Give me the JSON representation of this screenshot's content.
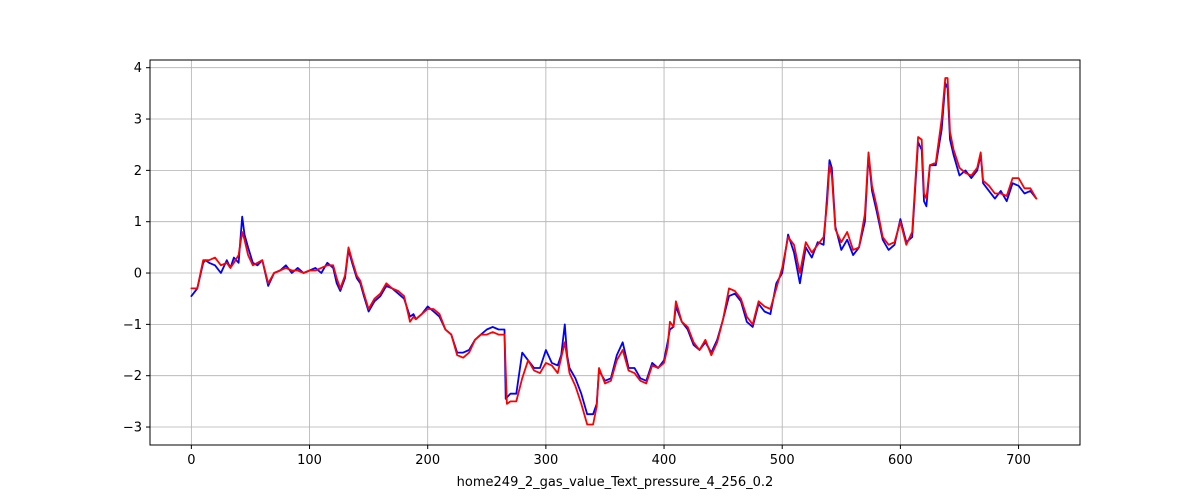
{
  "chart_data": {
    "type": "line",
    "title": "",
    "xlabel": "home249_2_gas_value_Text_pressure_4_256_0.2",
    "ylabel": "",
    "xlim": [
      -35,
      752
    ],
    "ylim": [
      -3.35,
      4.15
    ],
    "xticks": [
      0,
      100,
      200,
      300,
      400,
      500,
      600,
      700
    ],
    "yticks": [
      -3,
      -2,
      -1,
      0,
      1,
      2,
      3,
      4
    ],
    "grid": true,
    "legend": "none",
    "series": [
      {
        "color": "#0000ff",
        "x": [
          0,
          5,
          10,
          12,
          15,
          20,
          25,
          30,
          33,
          36,
          40,
          43,
          45,
          48,
          52,
          56,
          60,
          65,
          70,
          75,
          80,
          85,
          90,
          95,
          100,
          105,
          110,
          115,
          120,
          123,
          126,
          130,
          133,
          136,
          140,
          143,
          146,
          150,
          155,
          160,
          165,
          170,
          175,
          180,
          185,
          188,
          190,
          195,
          200,
          205,
          210,
          215,
          220,
          225,
          230,
          235,
          240,
          245,
          250,
          255,
          260,
          265,
          266,
          268,
          270,
          275,
          280,
          285,
          290,
          295,
          300,
          305,
          310,
          313,
          316,
          318,
          320,
          325,
          330,
          335,
          340,
          343,
          345,
          350,
          355,
          360,
          365,
          370,
          375,
          380,
          385,
          390,
          395,
          400,
          403,
          405,
          408,
          410,
          415,
          420,
          425,
          430,
          435,
          440,
          445,
          450,
          455,
          460,
          465,
          470,
          475,
          480,
          485,
          490,
          495,
          500,
          505,
          510,
          515,
          520,
          525,
          530,
          535,
          538,
          540,
          542,
          545,
          550,
          555,
          560,
          565,
          570,
          573,
          576,
          580,
          585,
          590,
          595,
          600,
          605,
          610,
          615,
          618,
          620,
          622,
          625,
          630,
          635,
          638,
          640,
          642,
          645,
          650,
          655,
          660,
          665,
          668,
          670,
          675,
          680,
          685,
          690,
          695,
          700,
          705,
          710,
          715
        ],
        "y": [
          -0.45,
          -0.3,
          0.2,
          0.25,
          0.2,
          0.15,
          0.0,
          0.25,
          0.1,
          0.3,
          0.2,
          1.1,
          0.75,
          0.5,
          0.2,
          0.15,
          0.25,
          -0.25,
          0.0,
          0.05,
          0.15,
          0.0,
          0.1,
          0.0,
          0.05,
          0.1,
          0.0,
          0.2,
          0.1,
          -0.2,
          -0.35,
          -0.1,
          0.45,
          0.2,
          -0.1,
          -0.2,
          -0.45,
          -0.75,
          -0.55,
          -0.45,
          -0.25,
          -0.3,
          -0.4,
          -0.5,
          -0.85,
          -0.8,
          -0.9,
          -0.8,
          -0.65,
          -0.75,
          -0.85,
          -1.1,
          -1.2,
          -1.55,
          -1.55,
          -1.5,
          -1.3,
          -1.2,
          -1.1,
          -1.05,
          -1.1,
          -1.1,
          -2.45,
          -2.4,
          -2.35,
          -2.35,
          -1.55,
          -1.7,
          -1.85,
          -1.85,
          -1.5,
          -1.75,
          -1.8,
          -1.6,
          -1.0,
          -1.6,
          -1.85,
          -2.05,
          -2.35,
          -2.75,
          -2.75,
          -2.55,
          -1.9,
          -2.1,
          -2.05,
          -1.6,
          -1.35,
          -1.85,
          -1.85,
          -2.05,
          -2.1,
          -1.75,
          -1.85,
          -1.7,
          -1.35,
          -1.1,
          -1.05,
          -0.65,
          -0.95,
          -1.1,
          -1.4,
          -1.5,
          -1.35,
          -1.55,
          -1.3,
          -0.9,
          -0.45,
          -0.4,
          -0.55,
          -0.95,
          -1.05,
          -0.6,
          -0.75,
          -0.8,
          -0.2,
          0.0,
          0.75,
          0.4,
          -0.2,
          0.5,
          0.3,
          0.6,
          0.55,
          1.5,
          2.2,
          2.05,
          0.9,
          0.45,
          0.65,
          0.35,
          0.5,
          1.0,
          2.3,
          1.6,
          1.2,
          0.65,
          0.45,
          0.55,
          1.05,
          0.6,
          0.7,
          2.55,
          2.4,
          1.4,
          1.3,
          2.1,
          2.1,
          2.8,
          3.7,
          3.6,
          2.6,
          2.3,
          1.9,
          2.0,
          1.85,
          2.0,
          2.3,
          1.75,
          1.6,
          1.45,
          1.6,
          1.4,
          1.75,
          1.7,
          1.55,
          1.6,
          1.45
        ]
      },
      {
        "color": "#ff0000",
        "x": [
          0,
          5,
          10,
          15,
          20,
          25,
          30,
          33,
          36,
          40,
          43,
          45,
          48,
          52,
          56,
          60,
          65,
          70,
          75,
          80,
          85,
          90,
          95,
          100,
          105,
          110,
          115,
          120,
          123,
          126,
          130,
          133,
          136,
          140,
          143,
          146,
          150,
          155,
          160,
          165,
          170,
          175,
          180,
          185,
          188,
          190,
          195,
          200,
          205,
          210,
          215,
          220,
          225,
          230,
          235,
          240,
          245,
          250,
          255,
          260,
          265,
          267,
          270,
          275,
          280,
          285,
          290,
          295,
          300,
          305,
          310,
          313,
          316,
          318,
          320,
          325,
          330,
          335,
          340,
          343,
          345,
          350,
          355,
          360,
          365,
          370,
          375,
          380,
          385,
          390,
          395,
          400,
          403,
          405,
          408,
          410,
          415,
          420,
          425,
          430,
          435,
          440,
          445,
          450,
          455,
          460,
          465,
          470,
          475,
          480,
          485,
          490,
          495,
          500,
          505,
          510,
          515,
          520,
          525,
          530,
          535,
          538,
          540,
          542,
          545,
          550,
          555,
          560,
          565,
          570,
          573,
          576,
          580,
          585,
          590,
          595,
          600,
          605,
          610,
          615,
          618,
          620,
          622,
          625,
          630,
          635,
          638,
          640,
          642,
          645,
          650,
          655,
          660,
          665,
          668,
          670,
          675,
          680,
          685,
          690,
          695,
          700,
          705,
          710,
          715
        ],
        "y": [
          -0.3,
          -0.3,
          0.25,
          0.25,
          0.3,
          0.15,
          0.2,
          0.1,
          0.2,
          0.35,
          0.8,
          0.65,
          0.35,
          0.15,
          0.2,
          0.25,
          -0.2,
          0.0,
          0.05,
          0.1,
          0.05,
          0.05,
          0.0,
          0.05,
          0.05,
          0.1,
          0.15,
          0.15,
          -0.1,
          -0.3,
          -0.05,
          0.5,
          0.25,
          -0.05,
          -0.15,
          -0.4,
          -0.7,
          -0.5,
          -0.4,
          -0.2,
          -0.3,
          -0.35,
          -0.45,
          -0.95,
          -0.85,
          -0.9,
          -0.8,
          -0.7,
          -0.7,
          -0.8,
          -1.1,
          -1.2,
          -1.6,
          -1.65,
          -1.55,
          -1.3,
          -1.2,
          -1.2,
          -1.15,
          -1.2,
          -1.2,
          -2.55,
          -2.5,
          -2.5,
          -2.05,
          -1.7,
          -1.9,
          -1.95,
          -1.75,
          -1.8,
          -1.95,
          -1.65,
          -1.35,
          -1.65,
          -1.95,
          -2.2,
          -2.55,
          -2.95,
          -2.95,
          -2.6,
          -1.85,
          -2.15,
          -2.1,
          -1.7,
          -1.5,
          -1.9,
          -1.95,
          -2.1,
          -2.15,
          -1.8,
          -1.85,
          -1.75,
          -1.45,
          -0.95,
          -1.05,
          -0.55,
          -0.95,
          -1.05,
          -1.35,
          -1.5,
          -1.3,
          -1.6,
          -1.35,
          -0.9,
          -0.3,
          -0.35,
          -0.5,
          -0.85,
          -1.0,
          -0.55,
          -0.65,
          -0.7,
          -0.3,
          0.1,
          0.7,
          0.55,
          0.0,
          0.6,
          0.4,
          0.55,
          0.7,
          1.35,
          2.1,
          1.9,
          0.85,
          0.6,
          0.8,
          0.45,
          0.5,
          1.15,
          2.35,
          1.7,
          1.3,
          0.7,
          0.55,
          0.6,
          1.0,
          0.55,
          0.8,
          2.65,
          2.6,
          1.55,
          1.45,
          2.1,
          2.15,
          3.0,
          3.8,
          3.8,
          2.75,
          2.4,
          2.05,
          1.95,
          1.9,
          2.05,
          2.35,
          1.8,
          1.7,
          1.55,
          1.55,
          1.5,
          1.85,
          1.85,
          1.65,
          1.65,
          1.45
        ]
      }
    ]
  }
}
